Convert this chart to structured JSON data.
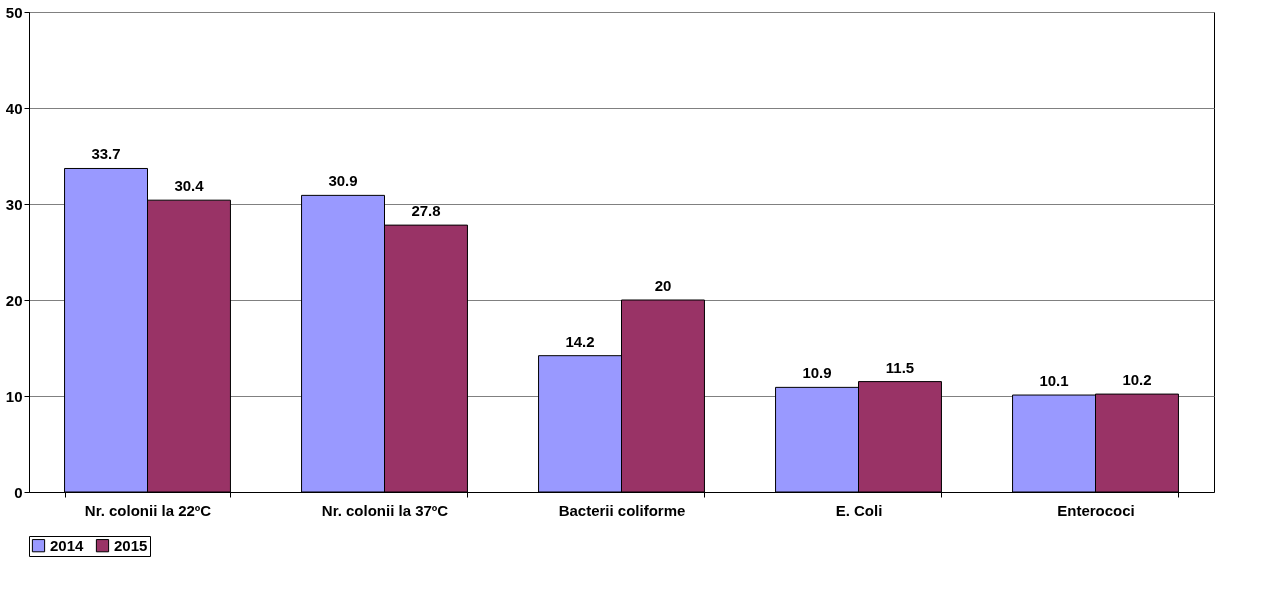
{
  "chart_data": {
    "type": "bar",
    "categories": [
      "Nr. colonii la 22ºC",
      "Nr. colonii la 37ºC",
      "Bacterii coliforme",
      "E. Coli",
      "Enterococi"
    ],
    "series": [
      {
        "name": "2014",
        "color": "#9999ff",
        "values": [
          33.7,
          30.9,
          14.2,
          10.9,
          10.1
        ]
      },
      {
        "name": "2015",
        "color": "#993366",
        "values": [
          30.4,
          27.8,
          20,
          11.5,
          10.2
        ]
      }
    ],
    "ylim": [
      0,
      50
    ],
    "yticks": [
      0,
      10,
      20,
      30,
      40,
      50
    ],
    "grid": "y",
    "legend": "bottom",
    "data_labels": true
  }
}
